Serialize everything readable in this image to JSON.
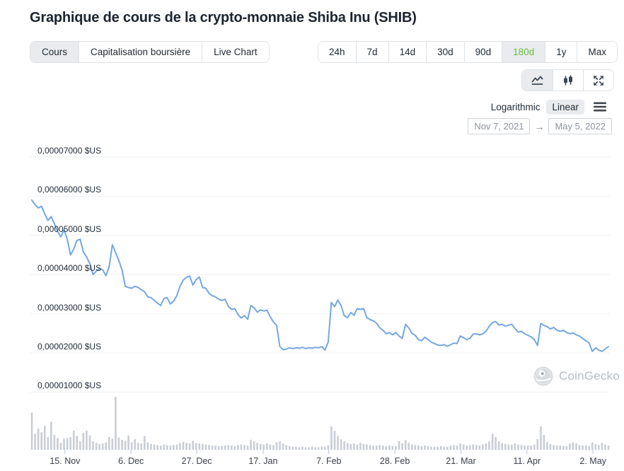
{
  "page": {
    "title": "Graphique de cours de la crypto-monnaie Shiba Inu (SHIB)"
  },
  "chart_tabs": {
    "items": [
      {
        "label": "Cours",
        "selected": true
      },
      {
        "label": "Capitalisation boursière",
        "selected": false
      },
      {
        "label": "Live Chart",
        "selected": false
      }
    ]
  },
  "range_tabs": {
    "items": [
      {
        "label": "24h",
        "selected": false
      },
      {
        "label": "7d",
        "selected": false
      },
      {
        "label": "14d",
        "selected": false
      },
      {
        "label": "30d",
        "selected": false
      },
      {
        "label": "90d",
        "selected": false
      },
      {
        "label": "180d",
        "selected": true
      },
      {
        "label": "1y",
        "selected": false
      },
      {
        "label": "Max",
        "selected": false
      }
    ]
  },
  "view_toggle": {
    "icons": [
      "line-chart",
      "candlestick",
      "fullscreen"
    ],
    "selected": "line-chart"
  },
  "scale_toggle": {
    "logarithmic_label": "Logarithmic",
    "linear_label": "Linear",
    "selected": "Linear"
  },
  "date_range": {
    "from": "Nov 7, 2021",
    "arrow": "→",
    "to": "May 5, 2022"
  },
  "watermark": {
    "name": "CoinGecko"
  },
  "colors": {
    "line": "#74a7e2",
    "volume": "#c9cdd5",
    "gridline": "#eef0f3",
    "tick": "#b4c3da",
    "selected_bg": "#e9ebee",
    "green": "#6cbf40"
  },
  "chart_data": {
    "type": "line+bar",
    "title": "Shiba Inu (SHIB) price, 180 days, Nov 7 2021 - May 5 2022",
    "legend": "none",
    "grid": "horizontal",
    "y_axis": {
      "unit": "$US",
      "labels": [
        "0,00007000 $US",
        "0,00006000 $US",
        "0,00005000 $US",
        "0,00004000 $US",
        "0,00003000 $US",
        "0,00002000 $US",
        "0,00001000 $US"
      ],
      "values": [
        7000,
        6000,
        5000,
        4000,
        3000,
        2000,
        1000
      ],
      "value_scale": "1e-8 USD",
      "range": [
        1000,
        7000
      ]
    },
    "x_axis": {
      "tick_labels": [
        "15. Nov",
        "6. Dec",
        "27. Dec",
        "17. Jan",
        "7. Feb",
        "28. Feb",
        "21. Mar",
        "11. Apr",
        "2. May"
      ],
      "tick_days": [
        10.3,
        30.8,
        51.2,
        71.8,
        92.2,
        112.7,
        133.2,
        153.7,
        174.2
      ],
      "total_days": 180
    },
    "price_series": {
      "name": "SHIB price",
      "unit": "1e-8 USD",
      "values": [
        5900,
        5780,
        5700,
        5740,
        5550,
        5380,
        5480,
        5300,
        5100,
        4960,
        5150,
        4900,
        4500,
        4650,
        4870,
        4900,
        4580,
        4450,
        4280,
        4000,
        4090,
        4150,
        4120,
        3970,
        4200,
        4760,
        4560,
        4360,
        4120,
        3700,
        3670,
        3650,
        3700,
        3670,
        3610,
        3560,
        3430,
        3410,
        3340,
        3270,
        3210,
        3390,
        3410,
        3250,
        3320,
        3460,
        3700,
        3860,
        3930,
        3960,
        3730,
        3870,
        3940,
        3670,
        3650,
        3520,
        3460,
        3430,
        3370,
        3340,
        3370,
        3190,
        3110,
        3130,
        2980,
        2890,
        2950,
        2860,
        3210,
        3150,
        3040,
        3100,
        3070,
        3090,
        2920,
        2790,
        2700,
        2160,
        2080,
        2100,
        2130,
        2110,
        2130,
        2120,
        2140,
        2110,
        2130,
        2120,
        2140,
        2130,
        2160,
        2070,
        2280,
        3290,
        3180,
        3350,
        3210,
        2950,
        2900,
        3030,
        2960,
        3130,
        3110,
        3130,
        2900,
        2850,
        2820,
        2760,
        2640,
        2580,
        2490,
        2520,
        2460,
        2520,
        2430,
        2370,
        2730,
        2640,
        2500,
        2450,
        2340,
        2310,
        2400,
        2340,
        2270,
        2240,
        2200,
        2190,
        2210,
        2170,
        2210,
        2250,
        2240,
        2430,
        2390,
        2340,
        2370,
        2480,
        2490,
        2460,
        2490,
        2550,
        2680,
        2770,
        2800,
        2710,
        2730,
        2680,
        2710,
        2730,
        2620,
        2530,
        2550,
        2490,
        2450,
        2410,
        2340,
        2190,
        2750,
        2700,
        2670,
        2610,
        2650,
        2580,
        2550,
        2580,
        2520,
        2490,
        2510,
        2460,
        2430,
        2370,
        2310,
        2250,
        2040,
        2130,
        2070,
        2040,
        2100,
        2160
      ]
    },
    "volume_series": {
      "name": "Volume (relative, 100 = max)",
      "values": [
        70,
        30,
        40,
        33,
        45,
        24,
        53,
        28,
        22,
        13,
        21,
        22,
        24,
        36,
        26,
        16,
        32,
        36,
        27,
        16,
        13,
        11,
        12,
        14,
        24,
        21,
        100,
        23,
        19,
        17,
        27,
        14,
        20,
        13,
        12,
        26,
        14,
        11,
        10,
        9,
        8,
        10,
        9,
        8,
        9,
        10,
        13,
        15,
        13,
        12,
        17,
        13,
        12,
        11,
        10,
        9,
        8,
        8,
        7,
        7,
        8,
        9,
        8,
        7,
        9,
        10,
        9,
        8,
        19,
        16,
        13,
        11,
        10,
        12,
        10,
        9,
        14,
        16,
        12,
        9,
        7,
        6,
        6,
        5,
        6,
        5,
        5,
        6,
        5,
        5,
        6,
        6,
        8,
        44,
        36,
        26,
        20,
        16,
        13,
        11,
        12,
        10,
        13,
        11,
        10,
        9,
        8,
        8,
        9,
        8,
        7,
        8,
        7,
        7,
        16,
        12,
        18,
        13,
        10,
        9,
        8,
        7,
        8,
        7,
        6,
        6,
        6,
        7,
        6,
        6,
        8,
        9,
        8,
        12,
        10,
        8,
        9,
        10,
        9,
        8,
        10,
        12,
        16,
        30,
        24,
        16,
        13,
        11,
        10,
        10,
        12,
        10,
        9,
        8,
        8,
        8,
        10,
        20,
        44,
        28,
        15,
        11,
        9,
        8,
        8,
        7,
        7,
        12,
        14,
        12,
        9,
        8,
        8,
        7,
        14,
        11,
        9,
        13,
        10,
        8
      ]
    }
  }
}
